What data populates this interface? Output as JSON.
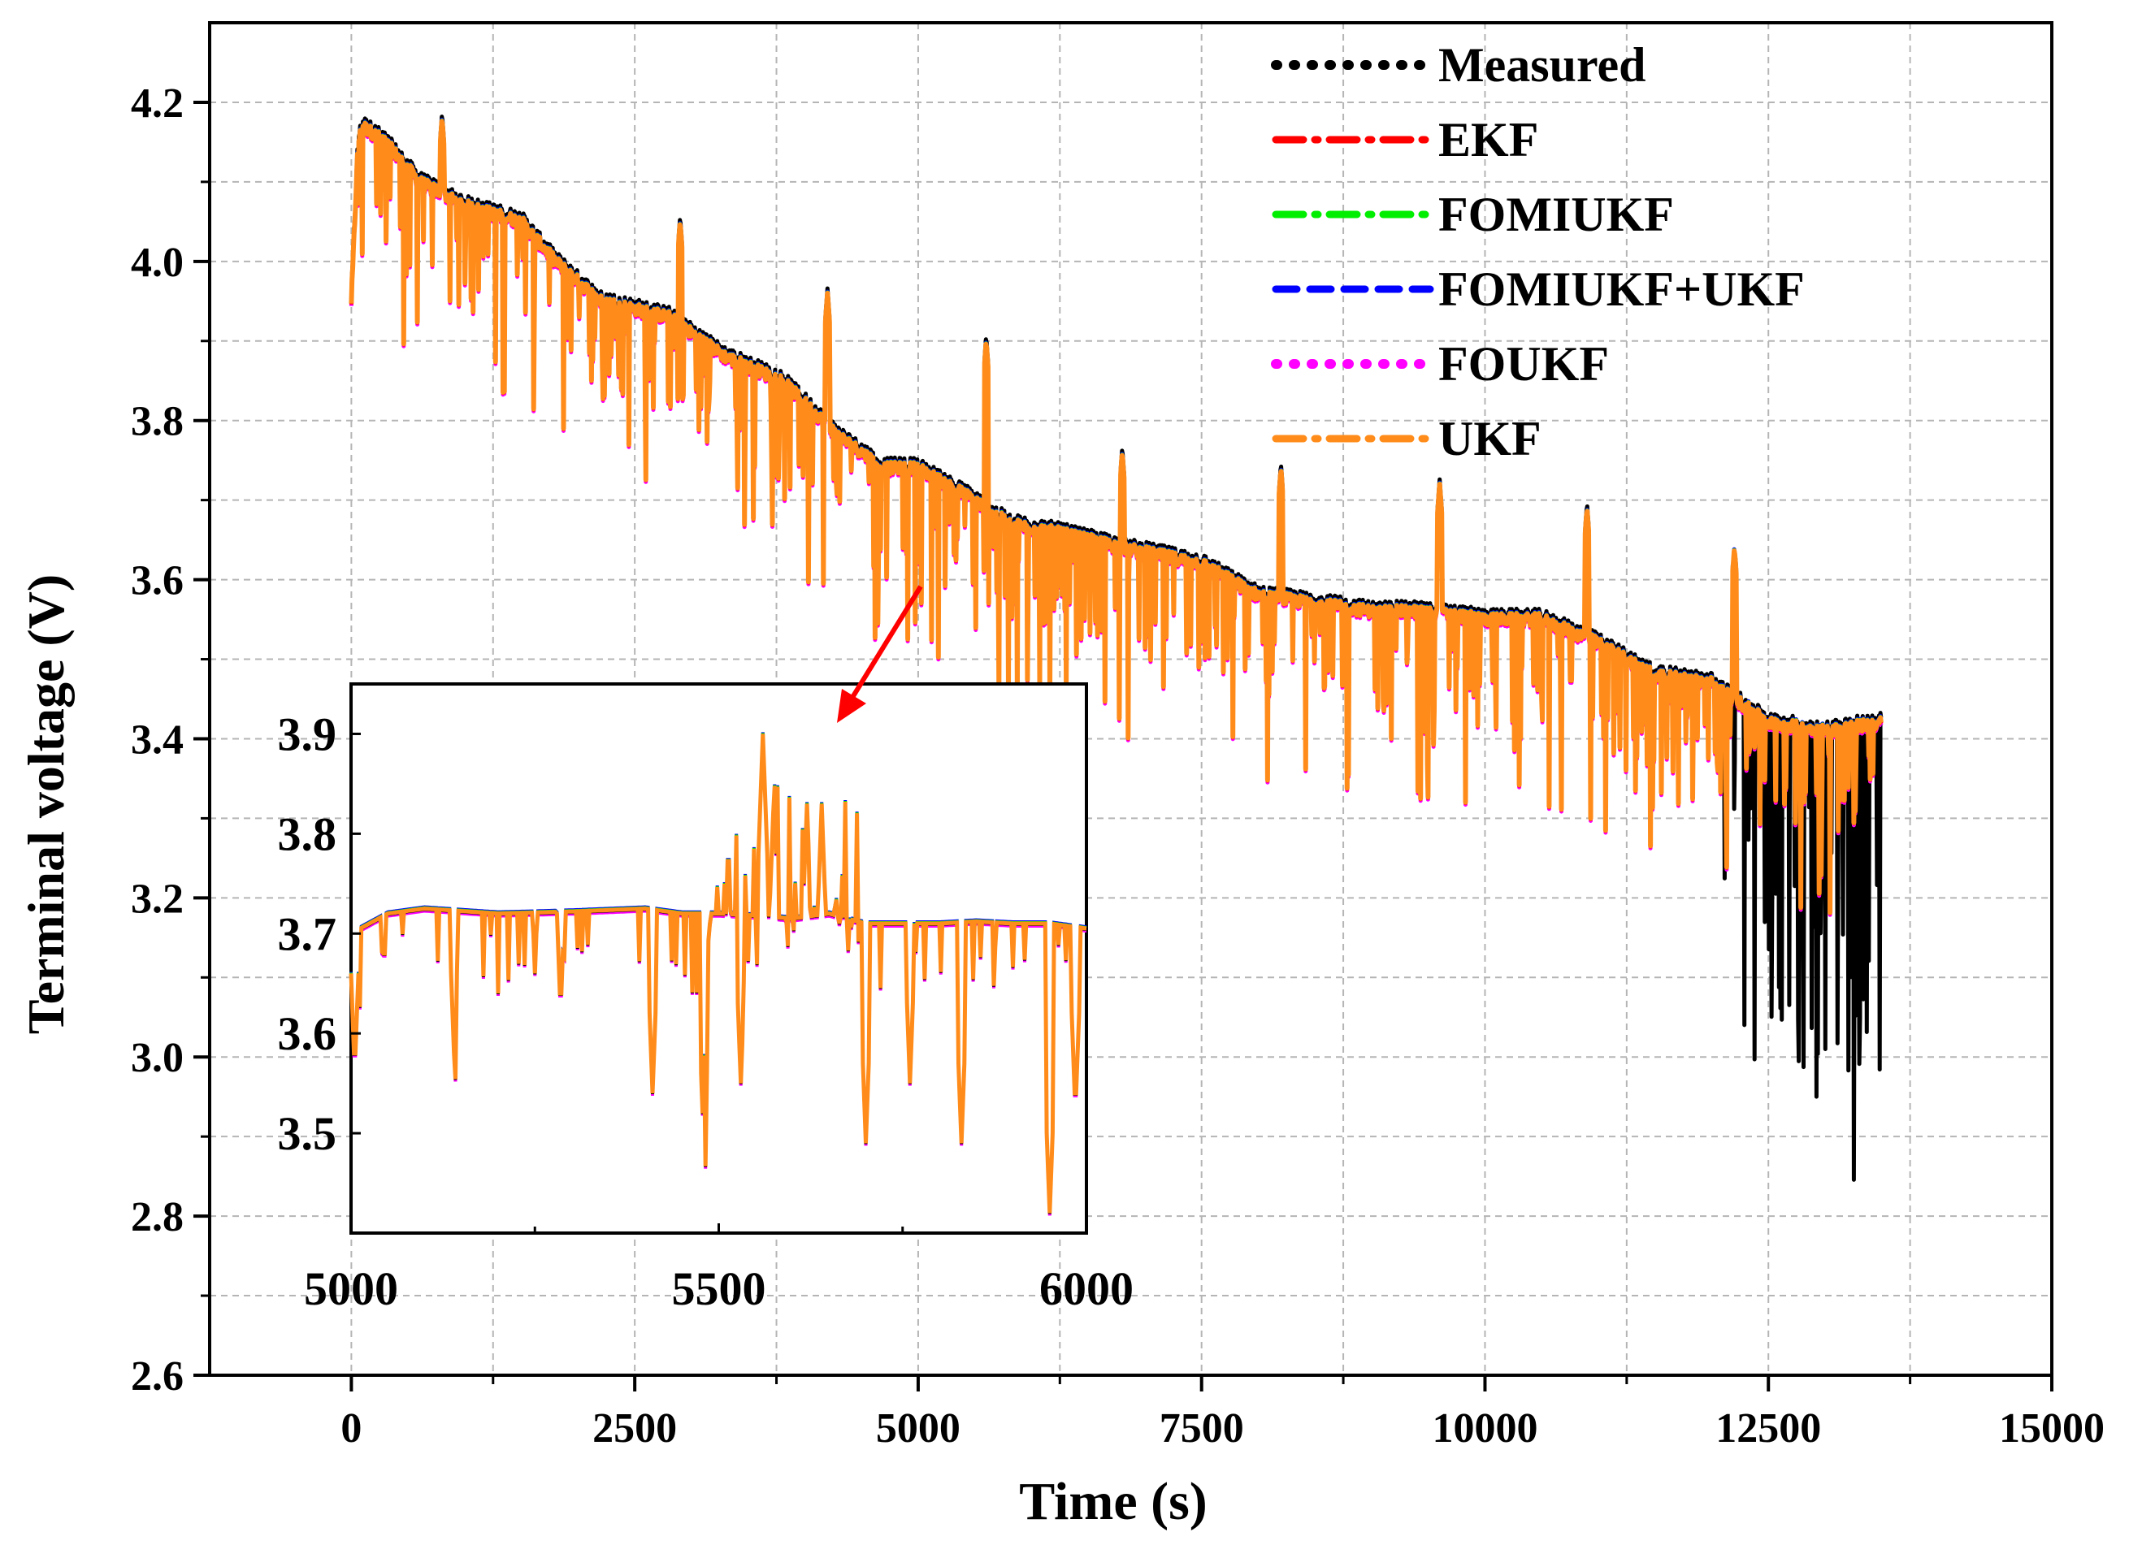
{
  "chart_data": {
    "type": "line",
    "title": "",
    "xlabel": "Time (s)",
    "ylabel": "Terminal voltage (V)",
    "xlim": [
      -1250,
      15000
    ],
    "ylim": [
      2.6,
      4.3
    ],
    "xticks": [
      0,
      2500,
      5000,
      7500,
      10000,
      12500,
      15000
    ],
    "yticks": [
      2.6,
      2.8,
      3.0,
      3.2,
      3.4,
      3.6,
      3.8,
      4.0,
      4.2
    ],
    "grid": true,
    "legend_position": "top-right",
    "series": [
      {
        "name": "Measured",
        "color": "#000000",
        "style": "dotted"
      },
      {
        "name": "EKF",
        "color": "#ff0000",
        "style": "dash-dot"
      },
      {
        "name": "FOMIUKF",
        "color": "#00ee00",
        "style": "dash-dot"
      },
      {
        "name": "FOMIUKF+UKF",
        "color": "#0000ff",
        "style": "dashed"
      },
      {
        "name": "FOUKF",
        "color": "#ff00ff",
        "style": "dotted"
      },
      {
        "name": "UKF",
        "color": "#ff8c1a",
        "style": "dash-dot"
      }
    ],
    "trend": {
      "x": [
        0,
        60,
        100,
        300,
        600,
        1000,
        1500,
        1800,
        2200,
        2800,
        3300,
        3800,
        4300,
        4700,
        5000,
        5500,
        5800,
        6200,
        6800,
        7500,
        8000,
        8500,
        9000,
        9500,
        10000,
        10500,
        11000,
        11500,
        12000,
        12500,
        13000,
        13500
      ],
      "y": [
        3.95,
        4.15,
        4.17,
        4.15,
        4.1,
        4.07,
        4.05,
        4.0,
        3.95,
        3.93,
        3.88,
        3.85,
        3.78,
        3.74,
        3.74,
        3.7,
        3.67,
        3.66,
        3.64,
        3.62,
        3.58,
        3.57,
        3.56,
        3.56,
        3.55,
        3.55,
        3.52,
        3.48,
        3.47,
        3.42,
        3.41,
        3.42
      ]
    },
    "spikes_up": [
      {
        "x": 800,
        "y": 4.18
      },
      {
        "x": 2900,
        "y": 4.05
      },
      {
        "x": 4200,
        "y": 3.96
      },
      {
        "x": 5600,
        "y": 3.9
      },
      {
        "x": 6800,
        "y": 3.76
      },
      {
        "x": 8200,
        "y": 3.74
      },
      {
        "x": 9600,
        "y": 3.72
      },
      {
        "x": 10900,
        "y": 3.69
      },
      {
        "x": 12200,
        "y": 3.64
      }
    ],
    "measured_tail": {
      "x_range": [
        12100,
        13500
      ],
      "min_y": 2.8
    },
    "inset": {
      "xlim": [
        5000,
        6000
      ],
      "ylim": [
        3.4,
        3.95
      ],
      "xticks": [
        5000,
        5500,
        6000
      ],
      "yticks": [
        3.5,
        3.6,
        3.7,
        3.8,
        3.9
      ],
      "base_x": [
        5000,
        5050,
        5100,
        5200,
        5300,
        5400,
        5450,
        5500,
        5550,
        5600,
        5650,
        5700,
        5750,
        5800,
        5850,
        5900,
        5950,
        6000
      ],
      "base_y": [
        3.7,
        3.72,
        3.725,
        3.72,
        3.722,
        3.725,
        3.72,
        3.72,
        3.718,
        3.715,
        3.72,
        3.71,
        3.71,
        3.71,
        3.712,
        3.71,
        3.71,
        3.705
      ],
      "dips": [
        {
          "x": 5005,
          "y": 3.56
        },
        {
          "x": 5045,
          "y": 3.66
        },
        {
          "x": 5140,
          "y": 3.58
        },
        {
          "x": 5250,
          "y": 3.66
        },
        {
          "x": 5285,
          "y": 3.62
        },
        {
          "x": 5410,
          "y": 3.54
        },
        {
          "x": 5480,
          "y": 3.48
        },
        {
          "x": 5530,
          "y": 3.55
        },
        {
          "x": 5620,
          "y": 3.56
        },
        {
          "x": 5700,
          "y": 3.49
        },
        {
          "x": 5760,
          "y": 3.55
        },
        {
          "x": 5830,
          "y": 3.49
        },
        {
          "x": 5950,
          "y": 3.42
        },
        {
          "x": 5985,
          "y": 3.52
        }
      ],
      "bumps": [
        {
          "x": 5560,
          "y": 3.9
        },
        {
          "x": 5575,
          "y": 3.84
        },
        {
          "x": 5620,
          "y": 3.83
        },
        {
          "x": 5640,
          "y": 3.83
        }
      ]
    }
  }
}
